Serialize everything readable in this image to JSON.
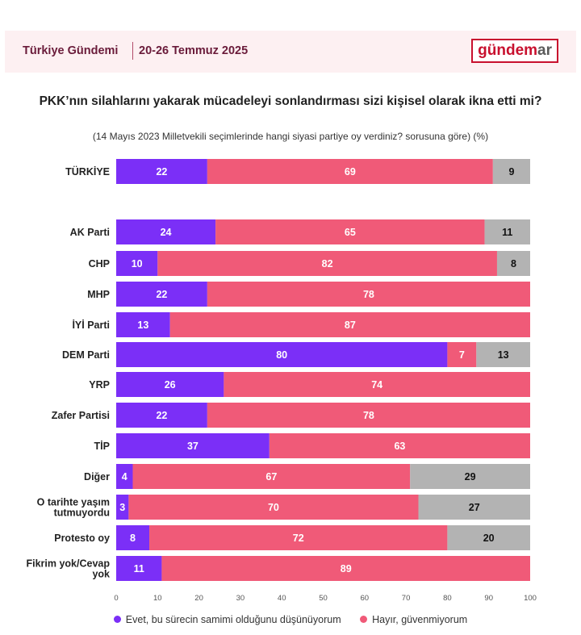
{
  "header": {
    "title": "Türkiye Gündemi",
    "date": "20-26 Temmuz 2025",
    "logo_part1": "gündem",
    "logo_part2": "ar"
  },
  "colors": {
    "evet": "#7b2ff7",
    "hayir": "#f05a78",
    "other": "#b3b3b3",
    "brand": "#c8102e"
  },
  "chart_data": {
    "type": "bar",
    "orientation": "horizontal",
    "stacked": true,
    "title": "PKK’nın silahlarını yakarak mücadeleyi sonlandırması sizi kişisel olarak ikna etti mi?",
    "subtitle": "(14 Mayıs 2023 Milletvekili seçimlerinde hangi siyasi partiye oy verdiniz? sorusuna göre) (%)",
    "categories": [
      "TÜRKİYE",
      "AK Parti",
      "CHP",
      "MHP",
      "İYİ Parti",
      "DEM Parti",
      "YRP",
      "Zafer Partisi",
      "TİP",
      "Diğer",
      "O tarihte yaşım tutmuyordu",
      "Protesto oy",
      "Fikrim yok/Cevap yok"
    ],
    "series": [
      {
        "name": "Evet, bu sürecin samimi olduğunu düşünüyorum",
        "values": [
          22,
          24,
          10,
          22,
          13,
          80,
          26,
          22,
          37,
          4,
          3,
          8,
          11
        ]
      },
      {
        "name": "Hayır, güvenmiyorum",
        "values": [
          69,
          65,
          82,
          78,
          87,
          7,
          74,
          78,
          63,
          67,
          70,
          72,
          89
        ]
      },
      {
        "name": "",
        "values": [
          9,
          11,
          8,
          0,
          0,
          13,
          0,
          0,
          0,
          29,
          27,
          20,
          0
        ]
      }
    ],
    "x_ticks": [
      0,
      10,
      20,
      30,
      40,
      50,
      60,
      70,
      80,
      90,
      100
    ],
    "xlim": [
      0,
      100
    ],
    "legend_position": "bottom"
  }
}
